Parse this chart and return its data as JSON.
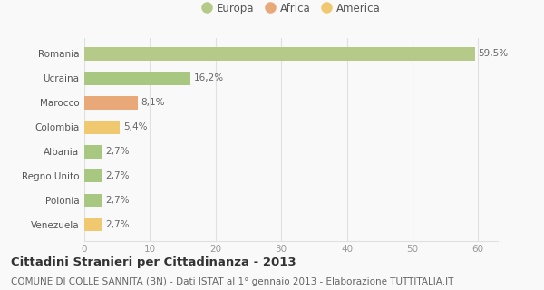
{
  "categories": [
    "Venezuela",
    "Polonia",
    "Regno Unito",
    "Albania",
    "Colombia",
    "Marocco",
    "Ucraina",
    "Romania"
  ],
  "values": [
    2.7,
    2.7,
    2.7,
    2.7,
    5.4,
    8.1,
    16.2,
    59.5
  ],
  "labels": [
    "2,7%",
    "2,7%",
    "2,7%",
    "2,7%",
    "5,4%",
    "8,1%",
    "16,2%",
    "59,5%"
  ],
  "colors": [
    "#f0c870",
    "#a8c882",
    "#a8c882",
    "#a8c882",
    "#f0c870",
    "#e8a878",
    "#a8c882",
    "#b5ca88"
  ],
  "legend": [
    {
      "label": "Europa",
      "color": "#b5ca88"
    },
    {
      "label": "Africa",
      "color": "#e8a878"
    },
    {
      "label": "America",
      "color": "#f0c870"
    }
  ],
  "xlim": [
    0,
    63
  ],
  "xticks": [
    0,
    10,
    20,
    30,
    40,
    50,
    60
  ],
  "title": "Cittadini Stranieri per Cittadinanza - 2013",
  "subtitle": "COMUNE DI COLLE SANNITA (BN) - Dati ISTAT al 1° gennaio 2013 - Elaborazione TUTTITALIA.IT",
  "title_fontsize": 9.5,
  "subtitle_fontsize": 7.5,
  "background_color": "#f9f9f9",
  "grid_color": "#e0e0e0"
}
